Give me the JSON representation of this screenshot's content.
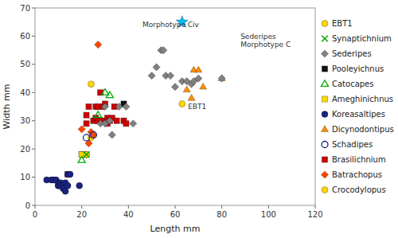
{
  "chart_data": {
    "type": "scatter",
    "xlabel": "Length mm",
    "ylabel": "Width mm",
    "xlim": [
      0,
      120
    ],
    "ylim": [
      0,
      70
    ],
    "xticks": [
      0,
      20,
      40,
      60,
      80,
      100,
      120
    ],
    "yticks": [
      0,
      10,
      20,
      30,
      40,
      50,
      60,
      70
    ],
    "grid": false,
    "series": [
      {
        "name": "EBT1",
        "color": "#FFD700",
        "marker": "circle",
        "x": [
          63
        ],
        "values": [
          36
        ]
      },
      {
        "name": "Synaptichnium",
        "color": "#00AA00",
        "marker": "cross",
        "x": [
          22
        ],
        "values": [
          18
        ]
      },
      {
        "name": "Sederipes",
        "color": "#808080",
        "marker": "diamond",
        "x": [
          28,
          30,
          30,
          32,
          33,
          36,
          39,
          42,
          50,
          52,
          54,
          55,
          56,
          58,
          60,
          63,
          65,
          67,
          68,
          70,
          80
        ],
        "values": [
          29,
          29,
          35,
          30,
          25,
          35,
          35,
          29,
          46,
          49,
          55,
          55,
          46,
          46,
          42,
          44,
          44,
          43,
          44,
          45,
          45
        ]
      },
      {
        "name": "Pooleyichnus",
        "color": "#111111",
        "marker": "square",
        "x": [
          38
        ],
        "values": [
          36
        ]
      },
      {
        "name": "Catocapes",
        "color": "#00AA00",
        "marker": "triangle-open",
        "x": [
          20,
          27,
          30,
          32
        ],
        "values": [
          16,
          32,
          40,
          39
        ]
      },
      {
        "name": "Ameghinichnus",
        "color": "#FFD700",
        "marker": "square",
        "x": [
          20,
          22
        ],
        "values": [
          18,
          18
        ]
      },
      {
        "name": "Koreasaltipes",
        "color": "#1A237E",
        "marker": "circle",
        "x": [
          5,
          7,
          8,
          9,
          10,
          10,
          10,
          11,
          11,
          12,
          12,
          13,
          13,
          14,
          14,
          15,
          19
        ],
        "values": [
          9,
          9,
          9,
          9,
          8,
          7,
          7,
          8,
          7,
          7,
          6,
          5,
          8,
          7,
          11,
          11,
          7
        ]
      },
      {
        "name": "Dicynodontipus",
        "color": "#FF8C00",
        "marker": "triangle",
        "x": [
          65,
          67,
          68,
          70,
          72,
          80
        ],
        "values": [
          41,
          38,
          48,
          48,
          42,
          45
        ]
      },
      {
        "name": "Schadipes",
        "color": "#1A237E",
        "marker": "circle-open",
        "x": [
          22,
          25
        ],
        "values": [
          24,
          25
        ]
      },
      {
        "name": "Brasilichnium",
        "color": "#CC0000",
        "marker": "square",
        "x": [
          14,
          20,
          22,
          22,
          23,
          25,
          26,
          26,
          27,
          27,
          28,
          28,
          29,
          30,
          30,
          31,
          31,
          32,
          33,
          34,
          35,
          38,
          39
        ],
        "values": [
          11,
          18,
          29,
          32,
          35,
          30,
          31,
          35,
          35,
          30,
          40,
          30,
          35,
          30,
          36,
          31,
          29,
          30,
          31,
          35,
          30,
          30,
          29
        ]
      },
      {
        "name": "Batrachopus",
        "color": "#FF4500",
        "marker": "diamond",
        "x": [
          20,
          22,
          23,
          24,
          25,
          27
        ],
        "values": [
          27,
          18,
          22,
          26,
          25,
          57
        ]
      },
      {
        "name": "Crocodylopus",
        "color": "#FFD700",
        "marker": "circle",
        "x": [
          24,
          24
        ],
        "values": [
          24,
          43
        ]
      },
      {
        "color": "#00BFFF",
        "marker": "star",
        "x": [
          63
        ],
        "values": [
          65
        ]
      }
    ],
    "annotations": [
      {
        "text": "Morphotype Civ",
        "x": 46,
        "y": 64
      },
      {
        "text": "Sederipes\nMorphotype C",
        "x": 88,
        "y": 60
      },
      {
        "text": "EBT1",
        "x": 65.5,
        "y": 35
      }
    ]
  }
}
